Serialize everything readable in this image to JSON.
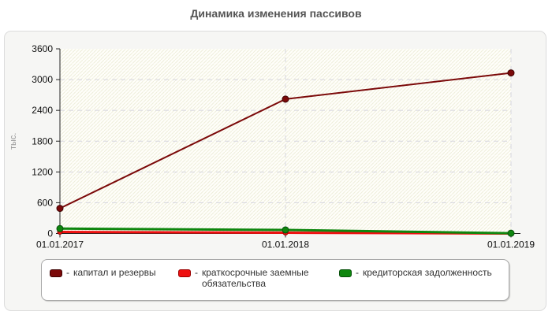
{
  "title": "Динамика изменения пассивов",
  "legend": {
    "dash_prefix": "-",
    "items": [
      {
        "label": "капитал и резервы",
        "color": "#7b0909",
        "edge": "#3f0303"
      },
      {
        "label": "краткосрочные заемные обязательства",
        "color": "#ee1010",
        "edge": "#9b0000"
      },
      {
        "label": "кредиторская задолженность",
        "color": "#0e860e",
        "edge": "#07500a"
      }
    ]
  },
  "chart_data": {
    "type": "line",
    "title": "Динамика изменения пассивов",
    "x": [
      "01.01.2017",
      "01.01.2018",
      "01.01.2019"
    ],
    "series": [
      {
        "name": "капитал и резервы",
        "color": "#7b0909",
        "edge": "#3f0303",
        "values": [
          490,
          2620,
          3130
        ]
      },
      {
        "name": "краткосрочные заемные обязательства",
        "color": "#ee1010",
        "edge": "#9b0000",
        "values": [
          30,
          15,
          0
        ]
      },
      {
        "name": "кредиторская задолженность",
        "color": "#0e860e",
        "edge": "#07500a",
        "values": [
          95,
          70,
          5
        ]
      }
    ],
    "xlabel": "",
    "ylabel": "тыс.",
    "ylim": [
      0,
      3600
    ],
    "y_ticks": [
      0,
      600,
      1200,
      1800,
      2400,
      3000,
      3600
    ],
    "grid": "dashed light horizontal and vertical gridlines",
    "plot_background": "white with pale diagonal hatch stripes",
    "legend_position": "bottom"
  }
}
